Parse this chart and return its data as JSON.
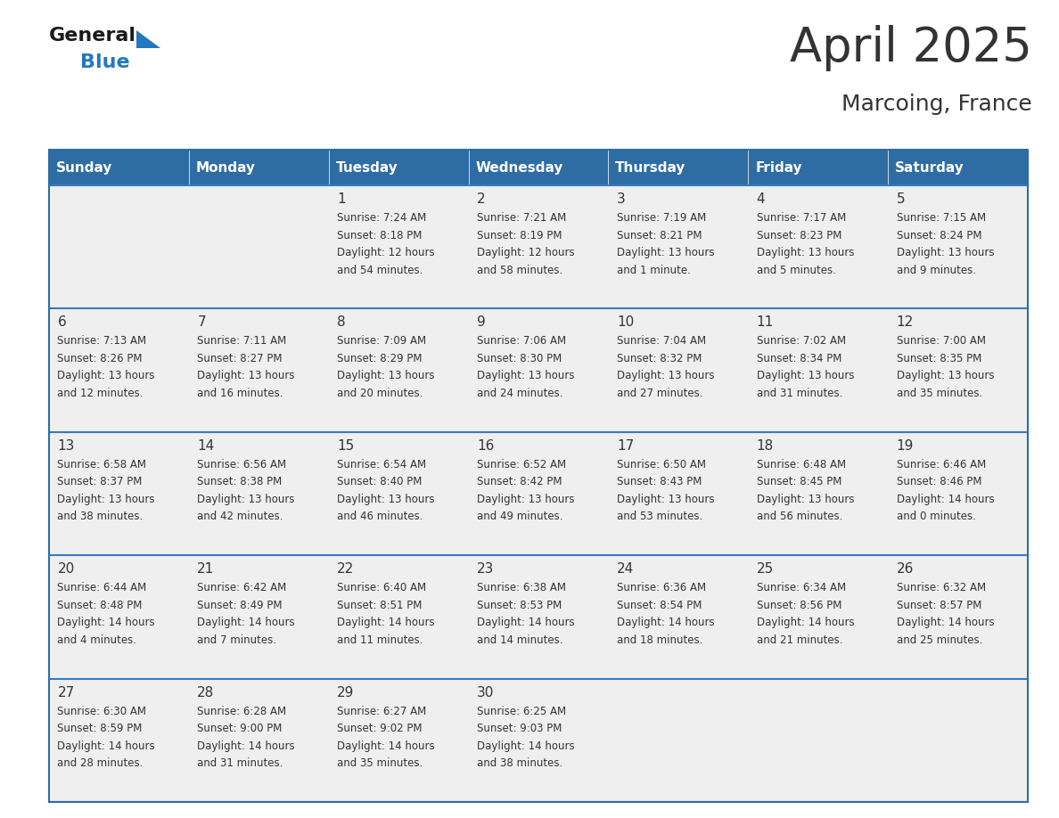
{
  "title": "April 2025",
  "subtitle": "Marcoing, France",
  "header_color": "#2E6DA4",
  "header_text_color": "#FFFFFF",
  "cell_bg_color": "#EFEFEF",
  "border_color": "#2E6DA4",
  "row_line_color": "#3A7ABF",
  "text_color": "#333333",
  "days_of_week": [
    "Sunday",
    "Monday",
    "Tuesday",
    "Wednesday",
    "Thursday",
    "Friday",
    "Saturday"
  ],
  "calendar_data": [
    [
      {
        "day": "",
        "info": ""
      },
      {
        "day": "",
        "info": ""
      },
      {
        "day": "1",
        "info": "Sunrise: 7:24 AM\nSunset: 8:18 PM\nDaylight: 12 hours\nand 54 minutes."
      },
      {
        "day": "2",
        "info": "Sunrise: 7:21 AM\nSunset: 8:19 PM\nDaylight: 12 hours\nand 58 minutes."
      },
      {
        "day": "3",
        "info": "Sunrise: 7:19 AM\nSunset: 8:21 PM\nDaylight: 13 hours\nand 1 minute."
      },
      {
        "day": "4",
        "info": "Sunrise: 7:17 AM\nSunset: 8:23 PM\nDaylight: 13 hours\nand 5 minutes."
      },
      {
        "day": "5",
        "info": "Sunrise: 7:15 AM\nSunset: 8:24 PM\nDaylight: 13 hours\nand 9 minutes."
      }
    ],
    [
      {
        "day": "6",
        "info": "Sunrise: 7:13 AM\nSunset: 8:26 PM\nDaylight: 13 hours\nand 12 minutes."
      },
      {
        "day": "7",
        "info": "Sunrise: 7:11 AM\nSunset: 8:27 PM\nDaylight: 13 hours\nand 16 minutes."
      },
      {
        "day": "8",
        "info": "Sunrise: 7:09 AM\nSunset: 8:29 PM\nDaylight: 13 hours\nand 20 minutes."
      },
      {
        "day": "9",
        "info": "Sunrise: 7:06 AM\nSunset: 8:30 PM\nDaylight: 13 hours\nand 24 minutes."
      },
      {
        "day": "10",
        "info": "Sunrise: 7:04 AM\nSunset: 8:32 PM\nDaylight: 13 hours\nand 27 minutes."
      },
      {
        "day": "11",
        "info": "Sunrise: 7:02 AM\nSunset: 8:34 PM\nDaylight: 13 hours\nand 31 minutes."
      },
      {
        "day": "12",
        "info": "Sunrise: 7:00 AM\nSunset: 8:35 PM\nDaylight: 13 hours\nand 35 minutes."
      }
    ],
    [
      {
        "day": "13",
        "info": "Sunrise: 6:58 AM\nSunset: 8:37 PM\nDaylight: 13 hours\nand 38 minutes."
      },
      {
        "day": "14",
        "info": "Sunrise: 6:56 AM\nSunset: 8:38 PM\nDaylight: 13 hours\nand 42 minutes."
      },
      {
        "day": "15",
        "info": "Sunrise: 6:54 AM\nSunset: 8:40 PM\nDaylight: 13 hours\nand 46 minutes."
      },
      {
        "day": "16",
        "info": "Sunrise: 6:52 AM\nSunset: 8:42 PM\nDaylight: 13 hours\nand 49 minutes."
      },
      {
        "day": "17",
        "info": "Sunrise: 6:50 AM\nSunset: 8:43 PM\nDaylight: 13 hours\nand 53 minutes."
      },
      {
        "day": "18",
        "info": "Sunrise: 6:48 AM\nSunset: 8:45 PM\nDaylight: 13 hours\nand 56 minutes."
      },
      {
        "day": "19",
        "info": "Sunrise: 6:46 AM\nSunset: 8:46 PM\nDaylight: 14 hours\nand 0 minutes."
      }
    ],
    [
      {
        "day": "20",
        "info": "Sunrise: 6:44 AM\nSunset: 8:48 PM\nDaylight: 14 hours\nand 4 minutes."
      },
      {
        "day": "21",
        "info": "Sunrise: 6:42 AM\nSunset: 8:49 PM\nDaylight: 14 hours\nand 7 minutes."
      },
      {
        "day": "22",
        "info": "Sunrise: 6:40 AM\nSunset: 8:51 PM\nDaylight: 14 hours\nand 11 minutes."
      },
      {
        "day": "23",
        "info": "Sunrise: 6:38 AM\nSunset: 8:53 PM\nDaylight: 14 hours\nand 14 minutes."
      },
      {
        "day": "24",
        "info": "Sunrise: 6:36 AM\nSunset: 8:54 PM\nDaylight: 14 hours\nand 18 minutes."
      },
      {
        "day": "25",
        "info": "Sunrise: 6:34 AM\nSunset: 8:56 PM\nDaylight: 14 hours\nand 21 minutes."
      },
      {
        "day": "26",
        "info": "Sunrise: 6:32 AM\nSunset: 8:57 PM\nDaylight: 14 hours\nand 25 minutes."
      }
    ],
    [
      {
        "day": "27",
        "info": "Sunrise: 6:30 AM\nSunset: 8:59 PM\nDaylight: 14 hours\nand 28 minutes."
      },
      {
        "day": "28",
        "info": "Sunrise: 6:28 AM\nSunset: 9:00 PM\nDaylight: 14 hours\nand 31 minutes."
      },
      {
        "day": "29",
        "info": "Sunrise: 6:27 AM\nSunset: 9:02 PM\nDaylight: 14 hours\nand 35 minutes."
      },
      {
        "day": "30",
        "info": "Sunrise: 6:25 AM\nSunset: 9:03 PM\nDaylight: 14 hours\nand 38 minutes."
      },
      {
        "day": "",
        "info": ""
      },
      {
        "day": "",
        "info": ""
      },
      {
        "day": "",
        "info": ""
      }
    ]
  ],
  "logo_general_color": "#1a1a1a",
  "logo_blue_color": "#2278BE",
  "logo_triangle_color": "#2278BE",
  "title_fontsize": 38,
  "subtitle_fontsize": 18,
  "header_fontsize": 11,
  "day_num_fontsize": 11,
  "cell_text_fontsize": 8.5
}
